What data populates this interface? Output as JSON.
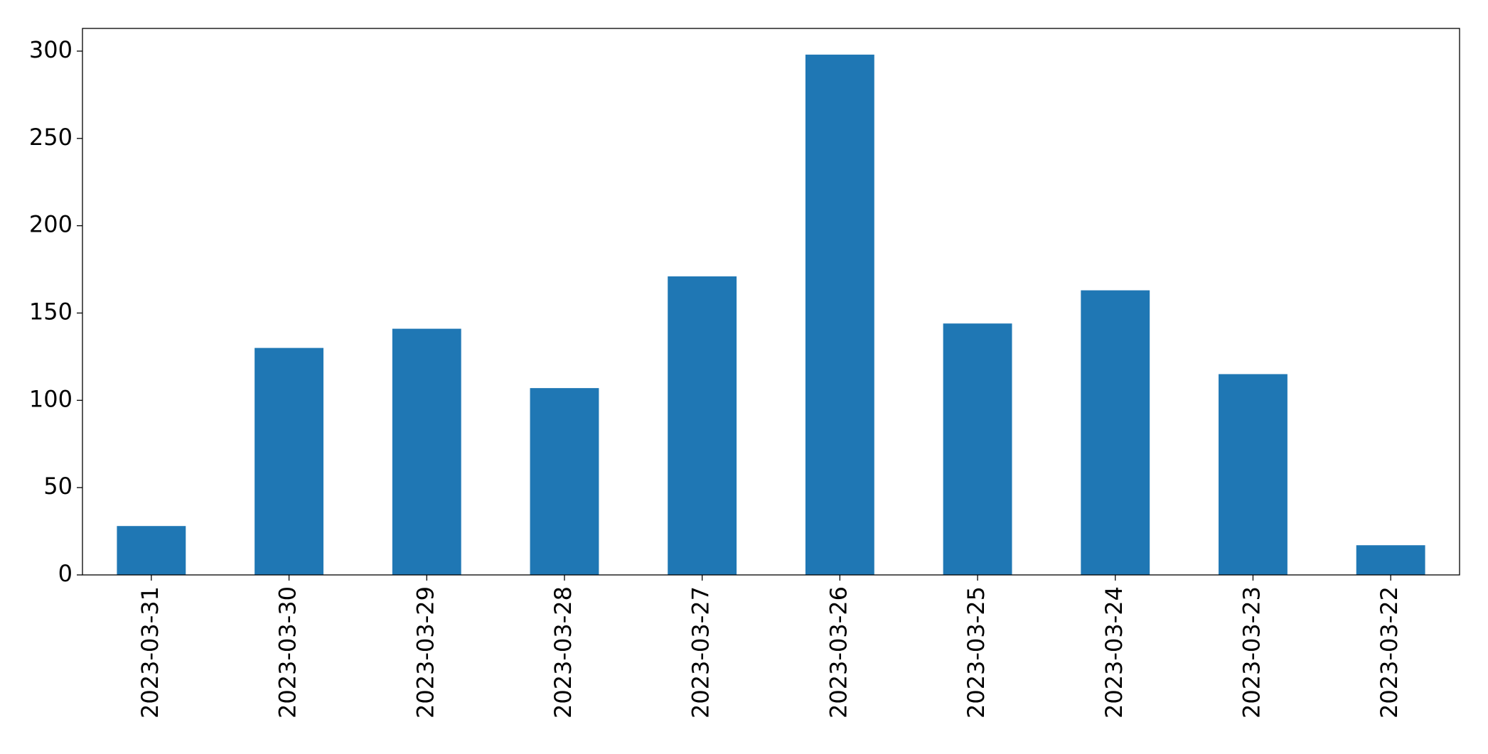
{
  "chart_data": {
    "type": "bar",
    "categories": [
      "2023-03-31",
      "2023-03-30",
      "2023-03-29",
      "2023-03-28",
      "2023-03-27",
      "2023-03-26",
      "2023-03-25",
      "2023-03-24",
      "2023-03-23",
      "2023-03-22"
    ],
    "values": [
      28,
      130,
      141,
      107,
      171,
      298,
      144,
      163,
      115,
      17
    ],
    "color": "#1f77b4",
    "ylim": [
      0,
      313
    ],
    "yticks": [
      0,
      50,
      100,
      150,
      200,
      250,
      300
    ],
    "grid": false
  }
}
